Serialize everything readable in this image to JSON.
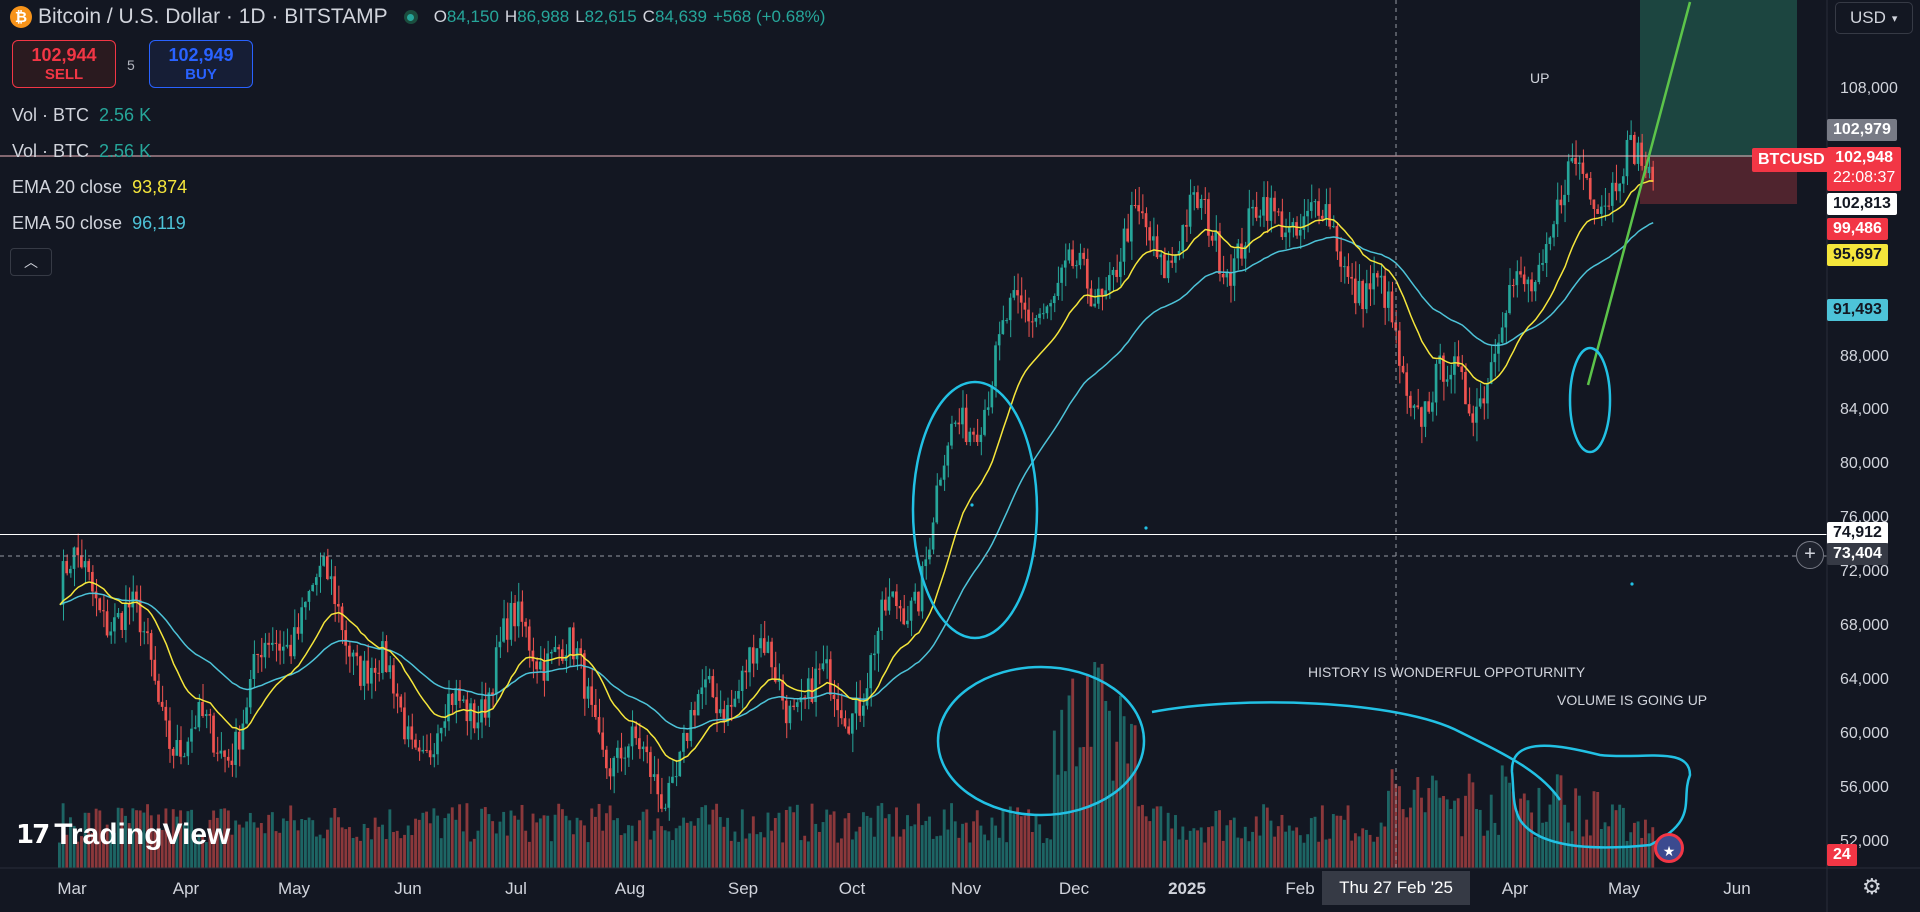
{
  "header": {
    "symbol_title": "Bitcoin / U.S. Dollar · 1D · BITSTAMP",
    "coin_icon": "bitcoin-icon",
    "ohlc": [
      {
        "k": "O",
        "v": "84,150"
      },
      {
        "k": "H",
        "v": "86,988"
      },
      {
        "k": "L",
        "v": "82,615"
      },
      {
        "k": "C",
        "v": "84,639"
      }
    ],
    "change": "+568 (+0.68%)",
    "status_color": "#26a69a"
  },
  "trade": {
    "sell_price": "102,944",
    "sell_label": "SELL",
    "spread": "5",
    "buy_price": "102,949",
    "buy_label": "BUY"
  },
  "legend": {
    "vol1_label": "Vol · BTC",
    "vol1_value": "2.56 K",
    "vol2_label": "Vol · BTC",
    "vol2_value": "2.56 K",
    "ema20_label": "EMA 20 close",
    "ema20_value": "93,874",
    "ema50_label": "EMA 50 close",
    "ema50_value": "96,119",
    "collapse_icon": "chevron-up-icon"
  },
  "currency": {
    "selected": "USD",
    "icon": "chevron-down-icon"
  },
  "price_axis": {
    "ticks": [
      "108,000",
      "88,000",
      "84,000",
      "80,000",
      "76,000",
      "72,000",
      "68,000",
      "64,000",
      "60,000",
      "56,000",
      "52,000"
    ],
    "labels": {
      "high_price": "102,979",
      "symbol": "BTCUSD",
      "last_price": "102,948",
      "countdown": "22:08:37",
      "bid": "102,813",
      "level_red": "99,486",
      "ema20": "95,697",
      "ema50": "91,493",
      "support": "74,912",
      "crosshair": "73,404",
      "volume": "24"
    }
  },
  "time_axis": {
    "labels": [
      "Mar",
      "Apr",
      "May",
      "Jun",
      "Jul",
      "Aug",
      "Sep",
      "Oct",
      "Nov",
      "Dec",
      "2025",
      "Feb",
      "Apr",
      "May",
      "Jun"
    ],
    "crosshair": "Thu 27 Feb '25"
  },
  "annotations": {
    "up": "UP",
    "history": "HISTORY IS WONDERFUL OPPOTURNITY",
    "volume": "VOLUME IS GOING UP"
  },
  "branding": {
    "logo_text": "TradingView"
  },
  "colors": {
    "up": "#26a69a",
    "down": "#ef5350",
    "ema20": "#f5e63b",
    "ema50": "#4dc3d8",
    "drawing": "#22c1e4",
    "trend": "#5cc44a"
  },
  "chart_data": {
    "type": "candlestick",
    "symbol": "BTCUSD",
    "interval": "1D",
    "ylim": [
      50000,
      112000
    ],
    "monthly_closes": [
      {
        "month": "Mar",
        "close": 71000
      },
      {
        "month": "Apr",
        "close": 61000
      },
      {
        "month": "May",
        "close": 67500
      },
      {
        "month": "Jun",
        "close": 62800
      },
      {
        "month": "Jul",
        "close": 64500
      },
      {
        "month": "Aug",
        "close": 59000
      },
      {
        "month": "Sep",
        "close": 63500
      },
      {
        "month": "Oct",
        "close": 70200
      },
      {
        "month": "Nov",
        "close": 96400
      },
      {
        "month": "Dec",
        "close": 93400
      },
      {
        "month": "2025",
        "close": 102400
      },
      {
        "month": "Feb",
        "close": 84300
      },
      {
        "month": "Apr",
        "close": 94200
      },
      {
        "month": "May",
        "close": 102948
      }
    ],
    "levels": {
      "support": 74912,
      "last": 102948
    }
  }
}
